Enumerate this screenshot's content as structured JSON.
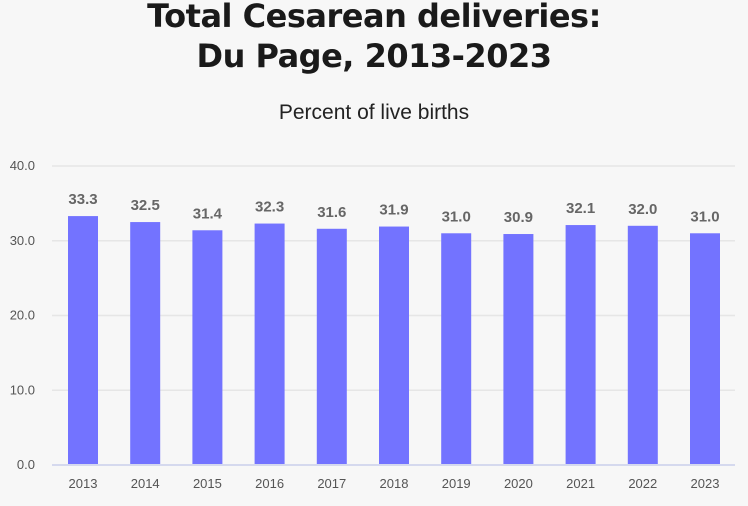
{
  "chart_data": {
    "type": "bar",
    "title": "Total Cesarean deliveries:\nDu Page, 2013-2023",
    "title_lines": [
      "Total Cesarean deliveries:",
      "Du Page, 2013-2023"
    ],
    "subtitle": "Percent of live births",
    "categories": [
      "2013",
      "2014",
      "2015",
      "2016",
      "2017",
      "2018",
      "2019",
      "2020",
      "2021",
      "2022",
      "2023"
    ],
    "values": [
      33.3,
      32.5,
      31.4,
      32.3,
      31.6,
      31.9,
      31.0,
      30.9,
      32.1,
      32.0,
      31.0
    ],
    "data_labels": [
      "33.3",
      "32.5",
      "31.4",
      "32.3",
      "31.6",
      "31.9",
      "31.0",
      "30.9",
      "32.1",
      "32.0",
      "31.0"
    ],
    "yticks": [
      "0.0",
      "10.0",
      "20.0",
      "30.0",
      "40.0"
    ],
    "ylim": [
      0,
      40
    ],
    "grid": true,
    "bar_color": "#7373ff",
    "xlabel": "",
    "ylabel": ""
  }
}
